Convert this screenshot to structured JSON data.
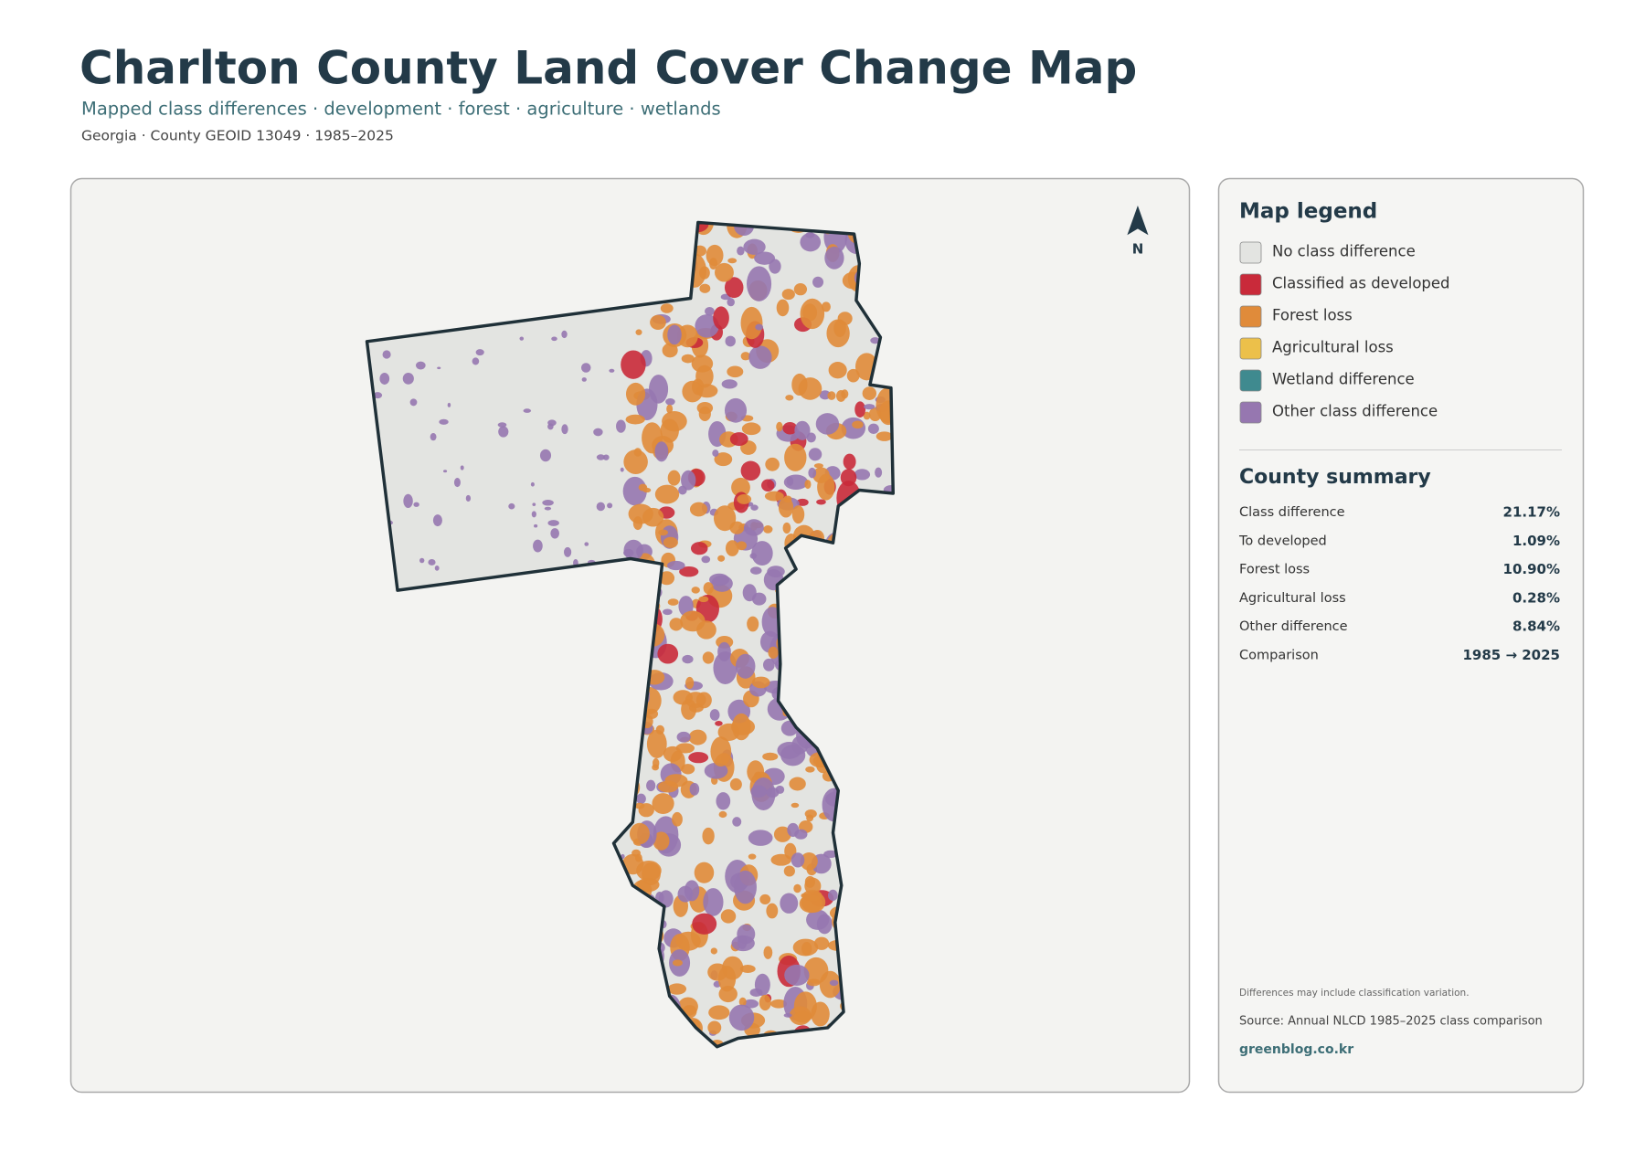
{
  "header": {
    "title": "Charlton County Land Cover Change Map",
    "subtitle": "Mapped class differences · development · forest · agriculture · wetlands",
    "meta": "Georgia · County GEOID 13049 · 1985–2025"
  },
  "north": "N",
  "legend": {
    "title": "Map legend",
    "items": [
      {
        "label": "No class difference",
        "color": "#e3e4e1"
      },
      {
        "label": "Classified as developed",
        "color": "#c92a3a"
      },
      {
        "label": "Forest loss",
        "color": "#e08b3a"
      },
      {
        "label": "Agricultural loss",
        "color": "#ecc04a"
      },
      {
        "label": "Wetland difference",
        "color": "#3f8a8f"
      },
      {
        "label": "Other class difference",
        "color": "#9677b0"
      }
    ]
  },
  "summary": {
    "title": "County summary",
    "rows": [
      {
        "label": "Class difference",
        "value": "21.17%"
      },
      {
        "label": "To developed",
        "value": "1.09%"
      },
      {
        "label": "Forest loss",
        "value": "10.90%"
      },
      {
        "label": "Agricultural loss",
        "value": "0.28%"
      },
      {
        "label": "Other difference",
        "value": "8.84%"
      },
      {
        "label": "Comparison",
        "value": "1985 → 2025"
      }
    ]
  },
  "notes": {
    "caveat": "Differences may include classification variation.",
    "source": "Source: Annual NLCD 1985–2025 class comparison",
    "credit": "greenblog.co.kr"
  }
}
